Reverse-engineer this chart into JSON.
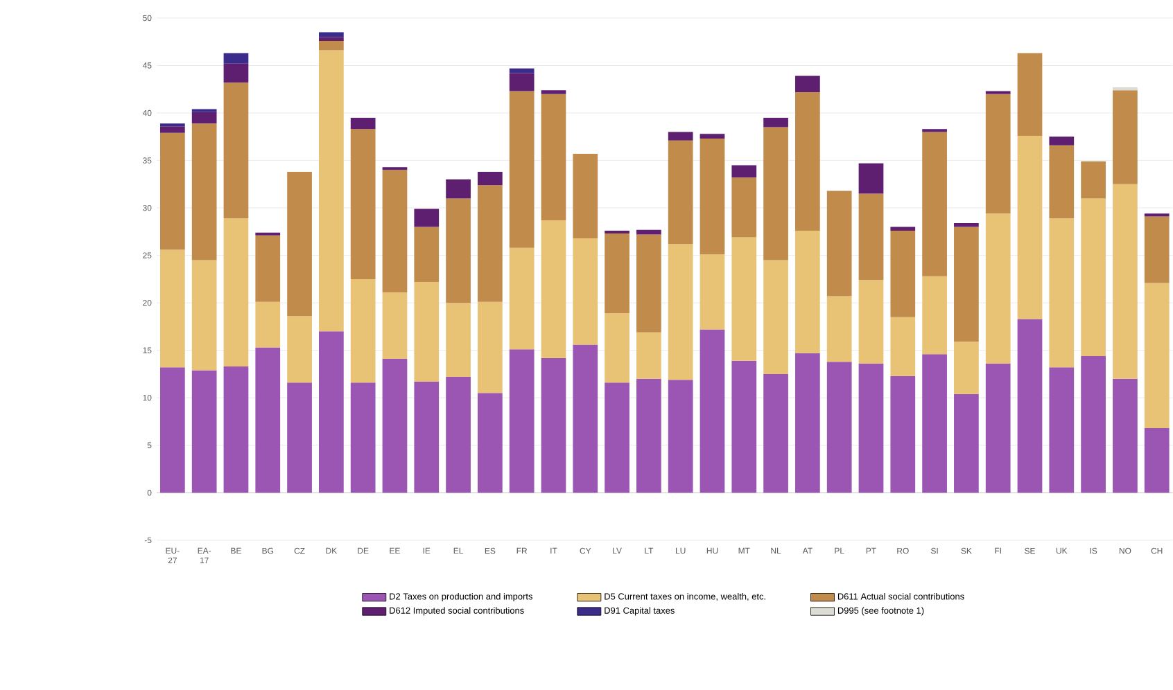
{
  "chart_data": {
    "type": "bar",
    "stacked": true,
    "categories": [
      "EU-27",
      "EA-17",
      "BE",
      "BG",
      "CZ",
      "DK",
      "DE",
      "EE",
      "IE",
      "EL",
      "ES",
      "FR",
      "IT",
      "CY",
      "LV",
      "LT",
      "LU",
      "HU",
      "MT",
      "NL",
      "AT",
      "PL",
      "PT",
      "RO",
      "SI",
      "SK",
      "FI",
      "SE",
      "UK",
      "IS",
      "NO",
      "CH"
    ],
    "series": [
      {
        "name": "D2 Taxes on production and imports",
        "color": "#9b55b3",
        "values": [
          13.2,
          12.9,
          13.3,
          15.3,
          11.6,
          17.0,
          11.6,
          14.1,
          11.7,
          12.2,
          10.5,
          15.1,
          14.2,
          15.6,
          11.6,
          12.0,
          11.9,
          17.2,
          13.9,
          12.5,
          14.7,
          13.8,
          13.6,
          12.3,
          14.6,
          10.4,
          13.6,
          18.3,
          13.2,
          14.4,
          12.0,
          6.8
        ]
      },
      {
        "name": "D5 Current taxes on income, wealth, etc.",
        "color": "#e8c375",
        "values": [
          12.4,
          11.6,
          15.6,
          4.8,
          7.0,
          29.6,
          10.9,
          7.0,
          10.5,
          7.8,
          9.6,
          10.7,
          14.5,
          11.2,
          7.3,
          4.9,
          14.3,
          7.9,
          13.0,
          12.0,
          12.9,
          6.9,
          8.8,
          6.2,
          8.2,
          5.5,
          15.8,
          19.3,
          15.7,
          16.6,
          20.5,
          15.3
        ]
      },
      {
        "name": "D611 Actual social contributions",
        "color": "#c08b4b",
        "values": [
          12.3,
          14.4,
          14.3,
          7.0,
          15.2,
          1.0,
          15.8,
          12.9,
          5.8,
          11.0,
          12.3,
          16.5,
          13.3,
          8.9,
          8.4,
          10.3,
          10.9,
          12.2,
          6.3,
          14.0,
          14.6,
          11.1,
          9.1,
          9.1,
          15.2,
          12.1,
          12.6,
          8.7,
          7.7,
          3.9,
          9.9,
          7.0
        ]
      },
      {
        "name": "D612 Imputed social contributions",
        "color": "#5e1f70",
        "values": [
          0.7,
          1.2,
          2.0,
          0.3,
          null,
          0.4,
          1.2,
          0.3,
          1.9,
          2.0,
          1.4,
          1.9,
          0.4,
          null,
          0.3,
          0.5,
          0.9,
          0.5,
          1.3,
          1.0,
          1.7,
          null,
          3.2,
          0.4,
          0.3,
          0.4,
          0.3,
          null,
          0.9,
          null,
          null,
          0.3
        ]
      },
      {
        "name": "D91 Capital taxes",
        "color": "#3b2c8c",
        "values": [
          0.3,
          0.3,
          1.1,
          null,
          null,
          0.5,
          null,
          null,
          null,
          null,
          null,
          0.5,
          null,
          null,
          null,
          null,
          null,
          null,
          null,
          null,
          null,
          null,
          null,
          null,
          null,
          null,
          null,
          null,
          null,
          null,
          null,
          null
        ]
      },
      {
        "name": "D995 (see footnote 1)",
        "color": "#dcdcd4",
        "values": [
          null,
          null,
          null,
          null,
          null,
          null,
          null,
          null,
          null,
          null,
          null,
          null,
          null,
          null,
          null,
          null,
          null,
          null,
          null,
          null,
          null,
          null,
          null,
          null,
          null,
          null,
          null,
          null,
          null,
          null,
          0.3,
          null
        ]
      }
    ],
    "ylim": [
      -5,
      50
    ],
    "yticks": [
      -5,
      0,
      5,
      10,
      15,
      20,
      25,
      30,
      35,
      40,
      45,
      50
    ],
    "grid": "y",
    "legend": "bottom"
  }
}
